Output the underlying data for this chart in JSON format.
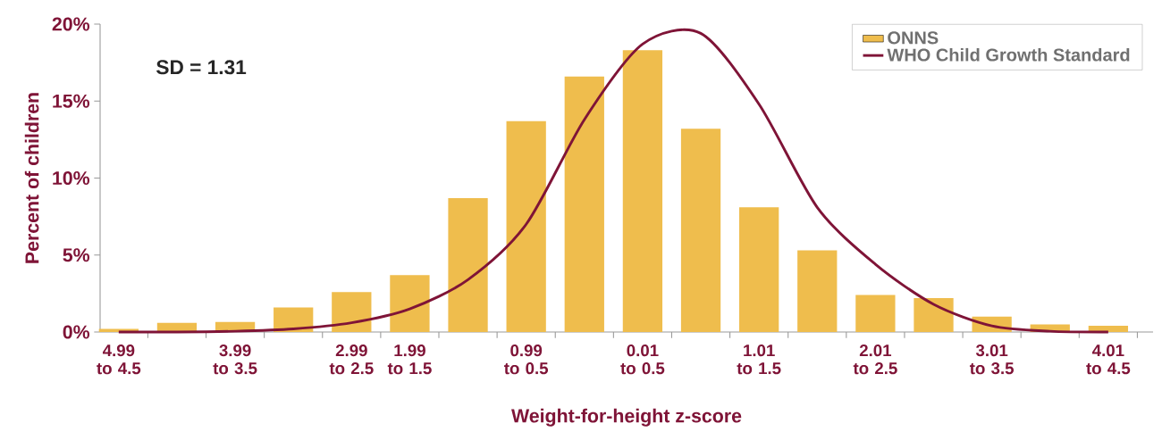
{
  "chart_data": {
    "type": "bar",
    "xlabel": "Weight-for-height z-score",
    "ylabel": "Percent of children",
    "categories": [
      "4.99 to 4.5",
      null,
      "3.99 to 3.5",
      null,
      "2.99 to 2.5",
      "1.99 to 1.5",
      null,
      "0.99 to 0.5",
      null,
      "0.01 to 0.5",
      null,
      "1.01 to 1.5",
      null,
      "2.01 to 2.5",
      null,
      "3.01 to 3.5",
      null,
      "4.01 to 4.5"
    ],
    "series": [
      {
        "name": "ONNS",
        "color": "#efbd4d",
        "values": [
          0.2,
          0.6,
          0.65,
          1.6,
          2.6,
          3.7,
          8.7,
          13.7,
          16.6,
          18.3,
          13.2,
          8.1,
          5.3,
          2.4,
          2.2,
          1.0,
          0.5,
          0.4
        ]
      },
      {
        "name": "WHO Child Growth Standard",
        "type": "line",
        "color": "#7f1437",
        "values": [
          0,
          0,
          0.05,
          0.2,
          0.6,
          1.5,
          3.4,
          7.0,
          13.8,
          18.7,
          19.4,
          14.8,
          8.1,
          4.4,
          1.8,
          0.4,
          0.05,
          0
        ]
      }
    ],
    "ylim": [
      0,
      20
    ],
    "yticks": [
      {
        "value": 0,
        "label": "0%"
      },
      {
        "value": 5,
        "label": "5%"
      },
      {
        "value": 10,
        "label": "10%"
      },
      {
        "value": 15,
        "label": "15%"
      },
      {
        "value": 20,
        "label": "20%"
      }
    ],
    "annotations": [
      "SD = 1.31"
    ],
    "legend": "top right",
    "marker": "none"
  }
}
